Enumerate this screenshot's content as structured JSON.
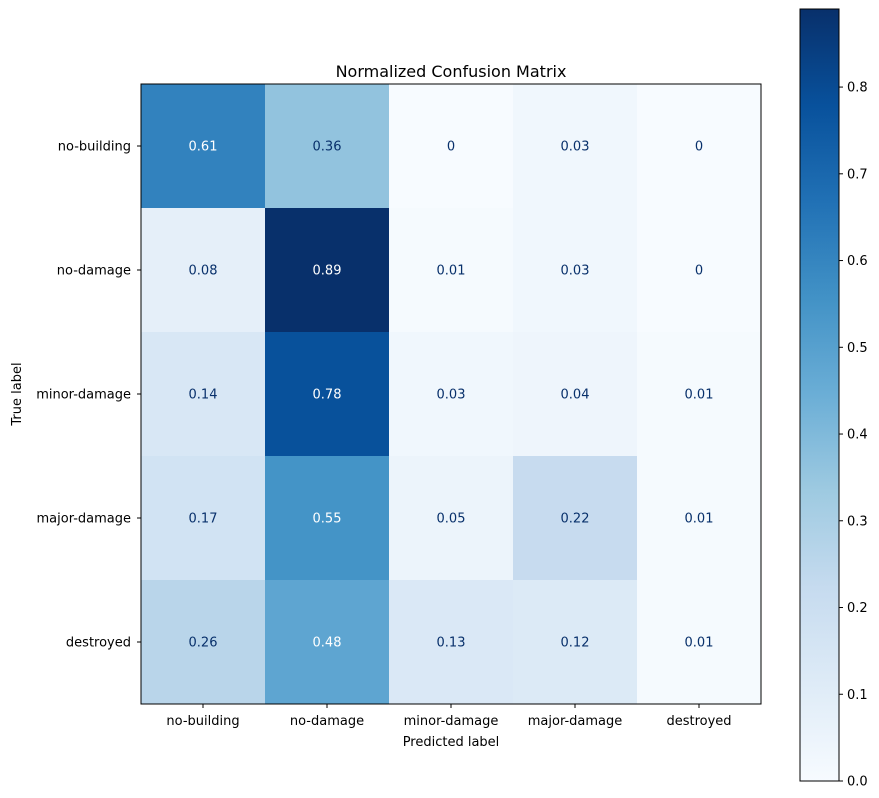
{
  "chart_data": {
    "type": "heatmap",
    "title": "Normalized Confusion Matrix",
    "xlabel": "Predicted label",
    "ylabel": "True label",
    "x_categories": [
      "no-building",
      "no-damage",
      "minor-damage",
      "major-damage",
      "destroyed"
    ],
    "y_categories": [
      "no-building",
      "no-damage",
      "minor-damage",
      "major-damage",
      "destroyed"
    ],
    "values": [
      [
        0.61,
        0.36,
        0,
        0.03,
        0
      ],
      [
        0.08,
        0.89,
        0.01,
        0.03,
        0
      ],
      [
        0.14,
        0.78,
        0.03,
        0.04,
        0.01
      ],
      [
        0.17,
        0.55,
        0.05,
        0.22,
        0.01
      ],
      [
        0.26,
        0.48,
        0.13,
        0.12,
        0.01
      ]
    ],
    "value_labels": [
      [
        "0.61",
        "0.36",
        "0",
        "0.03",
        "0"
      ],
      [
        "0.08",
        "0.89",
        "0.01",
        "0.03",
        "0"
      ],
      [
        "0.14",
        "0.78",
        "0.03",
        "0.04",
        "0.01"
      ],
      [
        "0.17",
        "0.55",
        "0.05",
        "0.22",
        "0.01"
      ],
      [
        "0.26",
        "0.48",
        "0.13",
        "0.12",
        "0.01"
      ]
    ],
    "colormap": "Blues",
    "colorbar": {
      "vmin": 0,
      "vmax": 0.89,
      "ticks": [
        0.0,
        0.1,
        0.2,
        0.3,
        0.4,
        0.5,
        0.6,
        0.7,
        0.8
      ],
      "tick_labels": [
        "0.0",
        "0.1",
        "0.2",
        "0.3",
        "0.4",
        "0.5",
        "0.6",
        "0.7",
        "0.8"
      ]
    },
    "grid": false,
    "text_color_light": "#ffffff",
    "text_color_dark": "#08306b"
  }
}
